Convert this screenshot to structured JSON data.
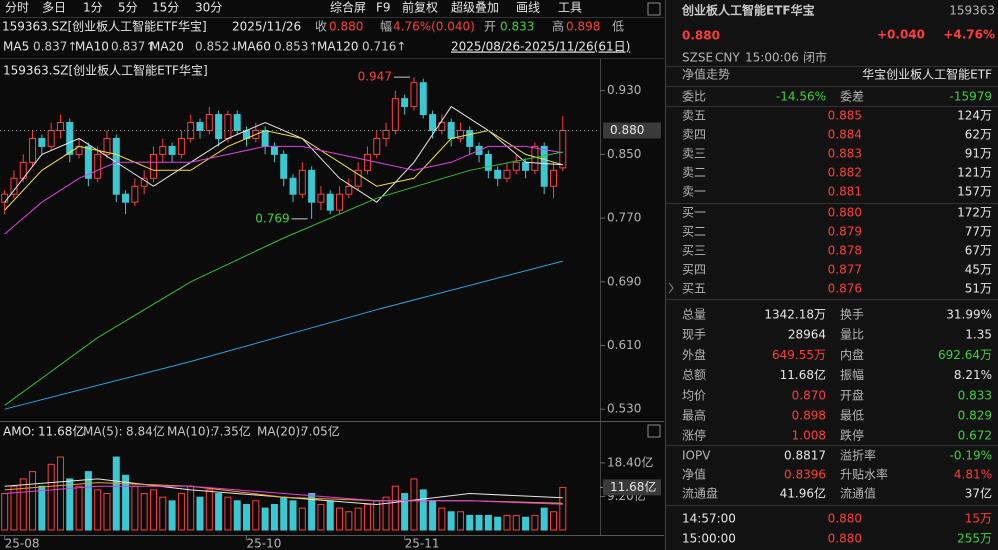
{
  "toolbar": {
    "left_tabs": [
      "分时",
      "多日",
      "1分",
      "5分",
      "15分",
      "30分"
    ],
    "right_tabs": [
      "综合屏",
      "F9",
      "前复权",
      "超级叠加",
      "画线",
      "工具"
    ]
  },
  "info_bar": {
    "symbol": "159363.SZ[创业板人工智能ETF华宝]",
    "date": "2025/11/26",
    "close_label": "收",
    "close": "0.880",
    "change_label": "幅",
    "change": "4.76%(0.040)",
    "open_label": "开",
    "open": "0.833",
    "high_label": "高",
    "high": "0.898",
    "low_label": "低"
  },
  "range": "2025/08/26-2025/11/26(61日)",
  "chart_data": [
    {
      "type": "candlestick",
      "title": "159363.SZ[创业板人工智能ETF华宝]",
      "xlim": [
        -0.5,
        64
      ],
      "ylim": [
        0.519,
        0.966
      ],
      "yticks": [
        {
          "value": 0.93,
          "label": "0.930"
        },
        {
          "value": 0.85,
          "label": "0.850"
        },
        {
          "value": 0.77,
          "label": "0.770"
        },
        {
          "value": 0.69,
          "label": "0.690"
        },
        {
          "value": 0.61,
          "label": "0.610"
        },
        {
          "value": 0.53,
          "label": "0.530"
        }
      ],
      "up_color": "#ff3c3c",
      "down_color": "#3cc8d2",
      "open": [
        0.79,
        0.8,
        0.82,
        0.84,
        0.87,
        0.86,
        0.88,
        0.89,
        0.85,
        0.86,
        0.82,
        0.85,
        0.87,
        0.8,
        0.79,
        0.81,
        0.82,
        0.85,
        0.86,
        0.85,
        0.87,
        0.89,
        0.88,
        0.9,
        0.87,
        0.9,
        0.88,
        0.87,
        0.88,
        0.86,
        0.85,
        0.82,
        0.8,
        0.83,
        0.79,
        0.8,
        0.78,
        0.8,
        0.81,
        0.83,
        0.85,
        0.87,
        0.88,
        0.92,
        0.91,
        0.94,
        0.9,
        0.88,
        0.89,
        0.87,
        0.88,
        0.86,
        0.85,
        0.83,
        0.82,
        0.83,
        0.84,
        0.83,
        0.86,
        0.81,
        0.833
      ],
      "high": [
        0.805,
        0.83,
        0.85,
        0.88,
        0.875,
        0.89,
        0.9,
        0.895,
        0.87,
        0.865,
        0.86,
        0.88,
        0.875,
        0.805,
        0.82,
        0.83,
        0.86,
        0.87,
        0.865,
        0.88,
        0.9,
        0.895,
        0.91,
        0.905,
        0.905,
        0.905,
        0.885,
        0.89,
        0.885,
        0.865,
        0.855,
        0.825,
        0.84,
        0.835,
        0.81,
        0.805,
        0.81,
        0.82,
        0.84,
        0.86,
        0.88,
        0.89,
        0.93,
        0.925,
        0.947,
        0.945,
        0.905,
        0.9,
        0.895,
        0.89,
        0.885,
        0.865,
        0.855,
        0.835,
        0.84,
        0.85,
        0.845,
        0.865,
        0.865,
        0.84,
        0.898
      ],
      "low": [
        0.775,
        0.795,
        0.815,
        0.835,
        0.85,
        0.855,
        0.87,
        0.84,
        0.845,
        0.81,
        0.815,
        0.845,
        0.79,
        0.775,
        0.785,
        0.8,
        0.815,
        0.84,
        0.84,
        0.845,
        0.865,
        0.87,
        0.875,
        0.86,
        0.865,
        0.875,
        0.86,
        0.865,
        0.85,
        0.84,
        0.81,
        0.79,
        0.795,
        0.769,
        0.78,
        0.775,
        0.775,
        0.795,
        0.805,
        0.825,
        0.845,
        0.86,
        0.875,
        0.9,
        0.905,
        0.895,
        0.87,
        0.875,
        0.86,
        0.865,
        0.85,
        0.84,
        0.82,
        0.81,
        0.815,
        0.825,
        0.82,
        0.825,
        0.8,
        0.795,
        0.829
      ],
      "close": [
        0.8,
        0.82,
        0.84,
        0.87,
        0.86,
        0.88,
        0.89,
        0.85,
        0.86,
        0.82,
        0.85,
        0.87,
        0.8,
        0.79,
        0.81,
        0.82,
        0.85,
        0.86,
        0.85,
        0.87,
        0.89,
        0.88,
        0.9,
        0.87,
        0.9,
        0.88,
        0.87,
        0.88,
        0.86,
        0.85,
        0.82,
        0.8,
        0.83,
        0.79,
        0.8,
        0.78,
        0.8,
        0.81,
        0.83,
        0.85,
        0.87,
        0.88,
        0.92,
        0.91,
        0.94,
        0.9,
        0.88,
        0.89,
        0.87,
        0.88,
        0.86,
        0.85,
        0.83,
        0.82,
        0.83,
        0.84,
        0.83,
        0.86,
        0.81,
        0.83,
        0.88
      ],
      "last": {
        "value": 0.88,
        "label": "0.880"
      },
      "annotations": [
        {
          "x": 44,
          "value": 0.947,
          "label": "0.947"
        },
        {
          "x": 33,
          "value": 0.769,
          "label": "0.769"
        }
      ],
      "series": [
        {
          "name": "MA5",
          "legend_value": "0.837↑",
          "color": "#e6e6e6",
          "x": [
            0,
            4,
            8,
            12,
            16,
            20,
            24,
            28,
            32,
            36,
            40,
            44,
            48,
            52,
            56,
            60
          ],
          "values": [
            0.79,
            0.85,
            0.87,
            0.84,
            0.81,
            0.84,
            0.87,
            0.89,
            0.87,
            0.82,
            0.79,
            0.84,
            0.91,
            0.88,
            0.84,
            0.837
          ]
        },
        {
          "name": "MA10",
          "legend_value": "0.837↑",
          "color": "#f0e040",
          "x": [
            0,
            4,
            8,
            12,
            16,
            20,
            24,
            28,
            32,
            36,
            40,
            44,
            48,
            52,
            56,
            60
          ],
          "values": [
            0.78,
            0.83,
            0.86,
            0.85,
            0.83,
            0.83,
            0.86,
            0.88,
            0.87,
            0.84,
            0.81,
            0.82,
            0.87,
            0.88,
            0.85,
            0.837
          ]
        },
        {
          "name": "MA20",
          "legend_value": "0.852↓",
          "color": "#e040e0",
          "x": [
            0,
            4,
            8,
            12,
            16,
            20,
            24,
            28,
            32,
            36,
            40,
            44,
            48,
            52,
            56,
            60
          ],
          "values": [
            0.75,
            0.79,
            0.82,
            0.84,
            0.84,
            0.84,
            0.85,
            0.86,
            0.86,
            0.85,
            0.84,
            0.83,
            0.84,
            0.86,
            0.86,
            0.852
          ]
        },
        {
          "name": "MA60",
          "legend_value": "0.853↑",
          "color": "#30c030",
          "x": [
            0,
            10,
            20,
            30,
            40,
            50,
            60
          ],
          "values": [
            0.535,
            0.62,
            0.69,
            0.745,
            0.795,
            0.83,
            0.853
          ]
        },
        {
          "name": "MA120",
          "legend_value": "0.716↑",
          "color": "#30a0e0",
          "x": [
            0,
            20,
            40,
            60
          ],
          "values": [
            0.53,
            0.59,
            0.655,
            0.716
          ]
        }
      ]
    },
    {
      "type": "bar",
      "title": "AMO:",
      "xlim": [
        -0.5,
        64
      ],
      "ylim": [
        0,
        23.3
      ],
      "yticks": [
        {
          "value": 18.4,
          "label": "18.40亿"
        },
        {
          "value": 9.2,
          "label": "9.20亿"
        }
      ],
      "xticks": [
        {
          "value": 0,
          "label": "25-08"
        },
        {
          "value": 26,
          "label": "25-10"
        },
        {
          "value": 43,
          "label": "25-11"
        }
      ],
      "values": [
        10,
        12,
        14,
        16,
        12,
        18,
        20,
        14,
        12,
        16,
        11,
        10,
        20,
        15,
        12,
        10,
        11,
        9,
        8,
        10,
        12,
        9,
        11,
        10,
        9,
        8,
        7,
        8,
        6,
        7,
        9,
        8,
        6,
        10,
        7,
        8,
        6,
        5,
        6,
        7,
        8,
        9,
        12,
        10,
        14,
        11,
        8,
        6,
        5,
        5,
        4,
        4,
        4,
        3.5,
        4,
        4,
        3.5,
        4,
        6,
        5,
        11.68
      ],
      "last": {
        "value": 11.68,
        "label": "11.68亿"
      },
      "series": [
        {
          "name": "MA(5):",
          "legend_value": "8.84亿",
          "color": "#e6e6e6",
          "x": [
            0,
            10,
            20,
            30,
            40,
            50,
            60
          ],
          "values": [
            12,
            14,
            11,
            9,
            7,
            10,
            8.84
          ]
        },
        {
          "name": "MA(10):",
          "legend_value": "7.35亿",
          "color": "#f0a020",
          "x": [
            0,
            10,
            20,
            30,
            40,
            50,
            60
          ],
          "values": [
            11,
            13,
            12,
            9,
            8,
            8,
            7.35
          ]
        },
        {
          "name": "MA(20):",
          "legend_value": "7.05亿",
          "color": "#e040e0",
          "x": [
            0,
            10,
            20,
            30,
            40,
            50,
            60
          ],
          "values": [
            10,
            12,
            12,
            10,
            8,
            8,
            7.05
          ]
        }
      ]
    }
  ],
  "quote_panel": {
    "title": "创业板人工智能ETF华宝",
    "code": "159363",
    "price": "0.880",
    "change": "+0.040",
    "change_pct": "+4.76%",
    "status": [
      "SZSE",
      "CNY",
      "15:00:06",
      "闭市"
    ],
    "nav_trend": "净值走势",
    "fund_name": "华宝创业板人工智能ETF",
    "ratio": [
      "委比",
      "-14.56%",
      "委差",
      "-15979"
    ],
    "asks": [
      [
        "卖五",
        "0.885",
        "124万"
      ],
      [
        "卖四",
        "0.884",
        "62万"
      ],
      [
        "卖三",
        "0.883",
        "91万"
      ],
      [
        "卖二",
        "0.882",
        "121万"
      ],
      [
        "卖一",
        "0.881",
        "157万"
      ]
    ],
    "bids": [
      [
        "买一",
        "0.880",
        "172万"
      ],
      [
        "买二",
        "0.879",
        "77万"
      ],
      [
        "买三",
        "0.878",
        "67万"
      ],
      [
        "买四",
        "0.877",
        "45万"
      ],
      [
        "买五",
        "0.876",
        "51万"
      ]
    ],
    "stats": [
      [
        "总量",
        "1342.18万",
        "换手",
        "31.99%"
      ],
      [
        "现手",
        "28964",
        "量比",
        "1.35"
      ],
      [
        "外盘",
        "649.55万",
        "内盘",
        "692.64万"
      ],
      [
        "总额",
        "11.68亿",
        "振幅",
        "8.21%"
      ],
      [
        "均价",
        "0.870",
        "开盘",
        "0.833"
      ],
      [
        "最高",
        "0.898",
        "最低",
        "0.829"
      ],
      [
        "涨停",
        "1.008",
        "跌停",
        "0.672"
      ]
    ],
    "fund_stats": [
      [
        "IOPV",
        "0.8817",
        "溢折率",
        "-0.19%"
      ],
      [
        "净值",
        "0.8396",
        "升贴水率",
        "4.81%"
      ],
      [
        "流通盘",
        "41.96亿",
        "流通值",
        "37亿"
      ]
    ],
    "ticks": [
      [
        "14:57:00",
        "0.880",
        "15万"
      ],
      [
        "15:00:00",
        "0.880",
        "255万"
      ]
    ]
  }
}
